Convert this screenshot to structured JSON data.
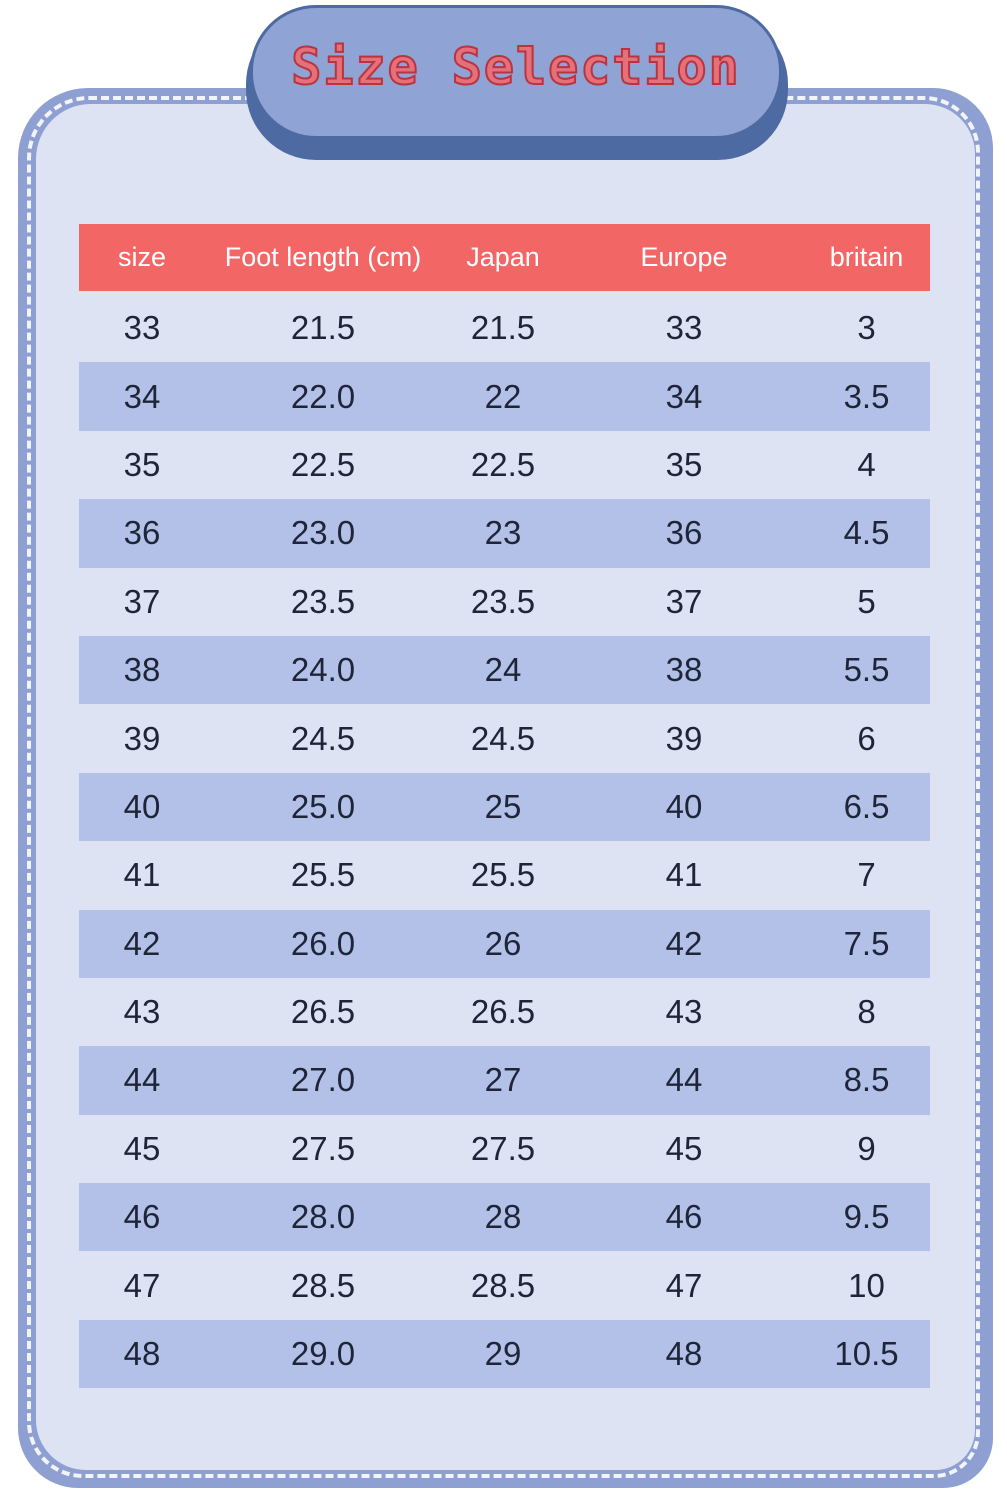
{
  "title": "Size Selection",
  "colors": {
    "header": "#f26666",
    "stripe": "#b3c1e8",
    "background": "#dde3f3",
    "frame": "#8e9fd2",
    "title_text": "#e5707a"
  },
  "table": {
    "headers": [
      "size",
      "Foot length (cm)",
      "Japan",
      "Europe",
      "britain"
    ],
    "rows": [
      [
        "33",
        "21.5",
        "21.5",
        "33",
        "3"
      ],
      [
        "34",
        "22.0",
        "22",
        "34",
        "3.5"
      ],
      [
        "35",
        "22.5",
        "22.5",
        "35",
        "4"
      ],
      [
        "36",
        "23.0",
        "23",
        "36",
        "4.5"
      ],
      [
        "37",
        "23.5",
        "23.5",
        "37",
        "5"
      ],
      [
        "38",
        "24.0",
        "24",
        "38",
        "5.5"
      ],
      [
        "39",
        "24.5",
        "24.5",
        "39",
        "6"
      ],
      [
        "40",
        "25.0",
        "25",
        "40",
        "6.5"
      ],
      [
        "41",
        "25.5",
        "25.5",
        "41",
        "7"
      ],
      [
        "42",
        "26.0",
        "26",
        "42",
        "7.5"
      ],
      [
        "43",
        "26.5",
        "26.5",
        "43",
        "8"
      ],
      [
        "44",
        "27.0",
        "27",
        "44",
        "8.5"
      ],
      [
        "45",
        "27.5",
        "27.5",
        "45",
        "9"
      ],
      [
        "46",
        "28.0",
        "28",
        "46",
        "9.5"
      ],
      [
        "47",
        "28.5",
        "28.5",
        "47",
        "10"
      ],
      [
        "48",
        "29.0",
        "29",
        "48",
        "10.5"
      ]
    ]
  }
}
